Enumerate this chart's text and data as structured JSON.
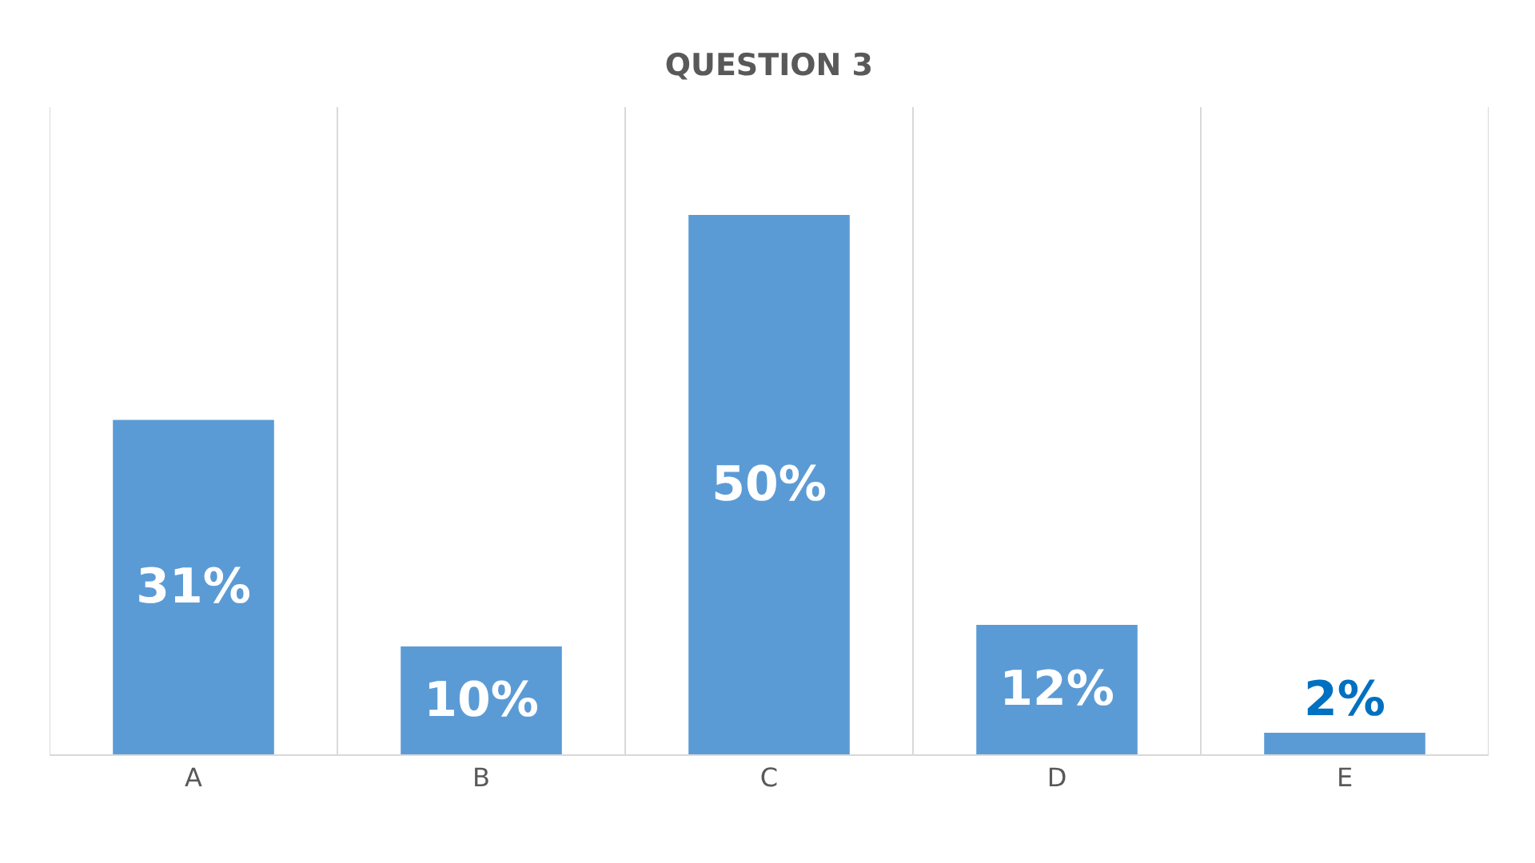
{
  "chart_data": {
    "type": "bar",
    "title": "QUESTION 3",
    "categories": [
      "A",
      "B",
      "C",
      "D",
      "E"
    ],
    "values": [
      31,
      10,
      50,
      12,
      2
    ],
    "value_labels": [
      "31%",
      "10%",
      "50%",
      "12%",
      "2%"
    ],
    "color": "#5b9bd5",
    "grid": "x"
  }
}
